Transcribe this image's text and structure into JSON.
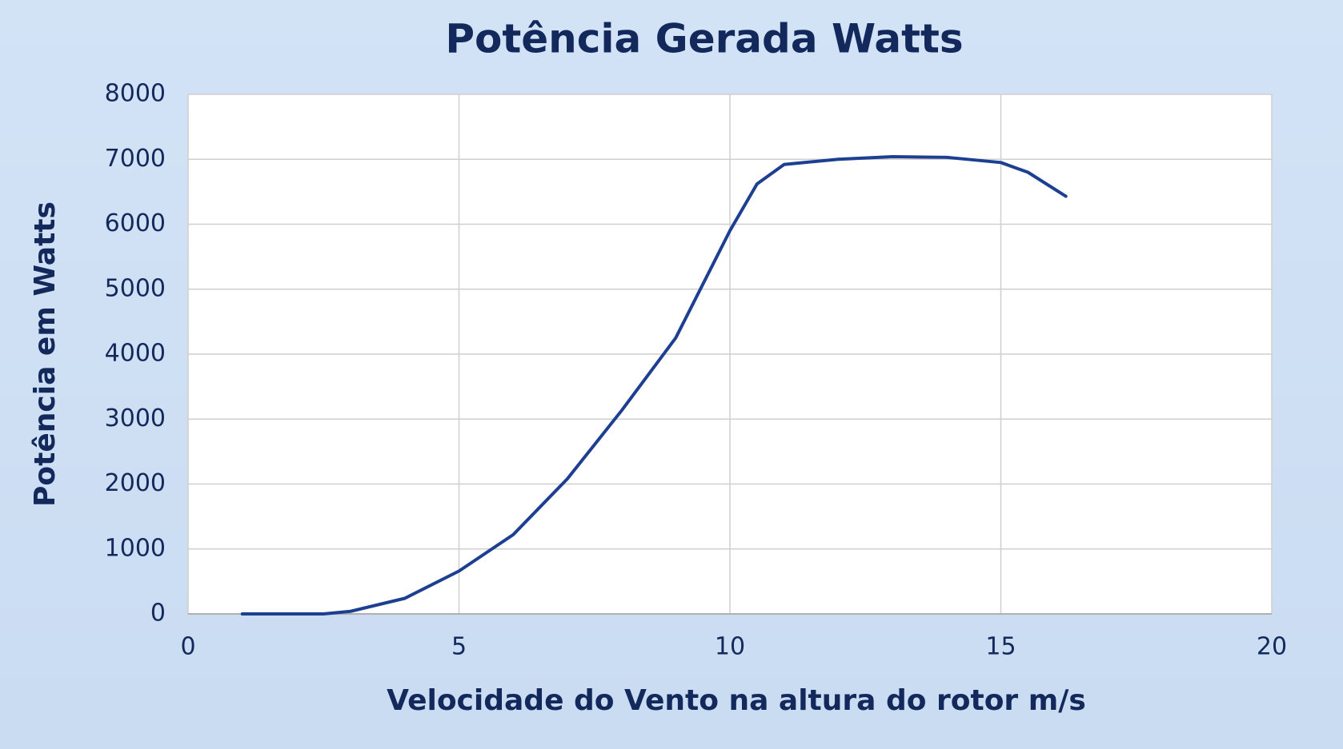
{
  "chart_data": {
    "type": "line",
    "title": "Potência Gerada Watts",
    "x_label": "Velocidade do Vento na altura do rotor m/s",
    "y_label": "Potência em Watts",
    "x": [
      1,
      2,
      2.5,
      3,
      4,
      5,
      6,
      7,
      8,
      9,
      10,
      10.5,
      11,
      12,
      13,
      14,
      15,
      15.5,
      16.2
    ],
    "series": [
      {
        "name": "Potência",
        "color": "#1d3f91",
        "values": [
          0,
          0,
          0,
          40,
          240,
          660,
          1220,
          2080,
          3130,
          4250,
          5900,
          6620,
          6920,
          7000,
          7040,
          7030,
          6950,
          6800,
          6430
        ]
      }
    ],
    "xlim": [
      0,
      20
    ],
    "xticks": [
      0,
      5,
      10,
      15,
      20
    ],
    "ylim": [
      0,
      8000
    ],
    "yticks": [
      0,
      1000,
      2000,
      3000,
      4000,
      5000,
      6000,
      7000,
      8000
    ],
    "grid": true
  }
}
